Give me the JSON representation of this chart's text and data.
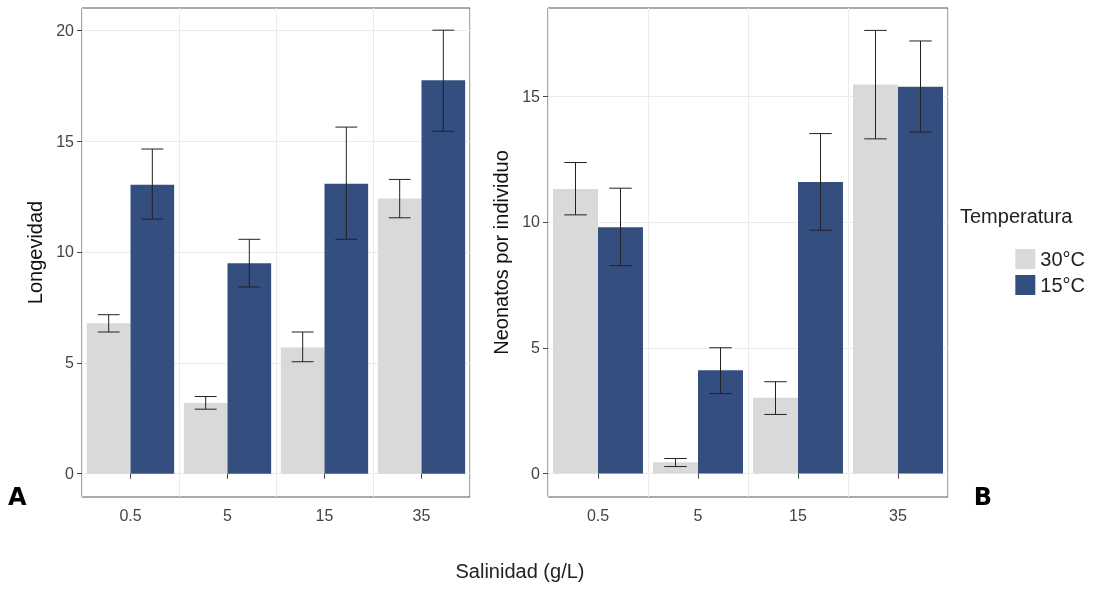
{
  "chart_data": [
    {
      "type": "bar",
      "xlabel": "Salinidad (g/L)",
      "ylabel": "Longevidad",
      "categories": [
        "0.5",
        "5",
        "15",
        "35"
      ],
      "series": [
        {
          "color": "#d9d9d9",
          "values": [
            6.78,
            3.19,
            5.69,
            12.41
          ],
          "errors": [
            [
              6.39,
              7.17
            ],
            [
              2.91,
              3.48
            ],
            [
              5.05,
              6.39
            ],
            [
              11.54,
              13.27
            ]
          ]
        },
        {
          "color": "#344e80",
          "values": [
            13.03,
            9.49,
            13.07,
            17.74
          ],
          "errors": [
            [
              11.48,
              14.64
            ],
            [
              8.42,
              10.57
            ],
            [
              10.57,
              15.63
            ],
            [
              15.44,
              20
            ]
          ]
        }
      ],
      "ylim": [
        -1.05,
        21
      ],
      "yticks": [
        0,
        5,
        10,
        15,
        20
      ],
      "grid": true,
      "legend": false,
      "annotations": [
        "A"
      ]
    },
    {
      "type": "bar",
      "ylabel": "Neonatos por individuo",
      "legend_title": "Temperatura",
      "categories": [
        "0.5",
        "5",
        "15",
        "35"
      ],
      "series": [
        {
          "name": "30°C",
          "color": "#d9d9d9",
          "values": [
            11.31,
            0.45,
            3.01,
            15.46
          ],
          "errors": [
            [
              10.28,
              12.36
            ],
            [
              0.28,
              0.6
            ],
            [
              2.35,
              3.65
            ],
            [
              13.3,
              17.61
            ]
          ]
        },
        {
          "name": "15°C",
          "color": "#344e80",
          "values": [
            9.79,
            4.11,
            11.59,
            15.37
          ],
          "errors": [
            [
              8.26,
              11.34
            ],
            [
              3.18,
              5.0
            ],
            [
              9.67,
              13.51
            ],
            [
              13.57,
              17.19
            ]
          ]
        }
      ],
      "ylim": [
        -0.93,
        18.5
      ],
      "yticks": [
        0,
        5,
        10,
        15
      ],
      "grid": true,
      "legend": "right",
      "annotations": [
        "B"
      ]
    }
  ]
}
